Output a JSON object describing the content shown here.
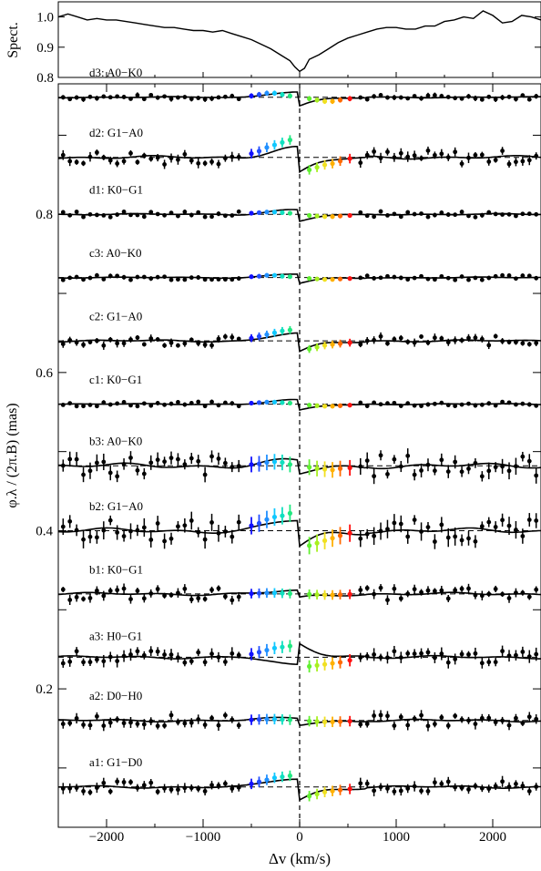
{
  "chart_data": [
    {
      "type": "line",
      "ylabel": "Spect.",
      "ylim": [
        0.8,
        1.05
      ],
      "yticks": [
        "0.8",
        "0.9",
        "1.0"
      ],
      "xlim": [
        -2500,
        2500
      ],
      "grid": false,
      "series": [
        {
          "x": [
            -2500,
            -2400,
            -2300,
            -2200,
            -2100,
            -2000,
            -1900,
            -1800,
            -1700,
            -1600,
            -1500,
            -1400,
            -1300,
            -1200,
            -1100,
            -1000,
            -900,
            -800,
            -700,
            -600,
            -500,
            -400,
            -300,
            -200,
            -100,
            -50,
            0,
            50,
            100,
            200,
            300,
            400,
            500,
            600,
            700,
            800,
            900,
            1000,
            1100,
            1200,
            1300,
            1400,
            1500,
            1600,
            1700,
            1800,
            1900,
            2000,
            2100,
            2200,
            2300,
            2400,
            2500
          ],
          "values": [
            1.0,
            1.01,
            1.0,
            0.99,
            0.995,
            0.99,
            0.99,
            0.985,
            0.98,
            0.975,
            0.97,
            0.965,
            0.965,
            0.96,
            0.955,
            0.955,
            0.95,
            0.955,
            0.945,
            0.935,
            0.925,
            0.91,
            0.895,
            0.875,
            0.855,
            0.835,
            0.82,
            0.83,
            0.86,
            0.875,
            0.895,
            0.915,
            0.93,
            0.94,
            0.95,
            0.96,
            0.965,
            0.965,
            0.96,
            0.96,
            0.97,
            0.97,
            0.985,
            0.99,
            1.0,
            0.995,
            1.02,
            1.005,
            0.98,
            0.985,
            1.005,
            1.0,
            0.99
          ]
        }
      ]
    },
    {
      "type": "scatter",
      "xlabel": "Δv  (km/s)",
      "ylabel": "φ.λ / (2π.B)    (mas)",
      "xlim": [
        -2500,
        2500
      ],
      "ylim": [
        0.025,
        0.965
      ],
      "xticks": [
        "−2000",
        "−1000",
        "0",
        "1000",
        "2000"
      ],
      "yticks": [
        "0.2",
        "0.4",
        "0.6",
        "0.8"
      ],
      "grid": false,
      "vertical_line_at": 0,
      "series": [
        {
          "name": "d3:  A0−K0",
          "baseline": 0.948,
          "amp": 0.012,
          "noise": 0.003,
          "err": 0.006,
          "points": [
            2,
            4,
            6,
            6,
            4,
            2,
            -2,
            -4,
            -6,
            -6,
            -4,
            -2
          ]
        },
        {
          "name": "d2:  G1−A0",
          "baseline": 0.872,
          "amp": 0.022,
          "noise": 0.009,
          "err": 0.011,
          "points": [
            3,
            5,
            8,
            10,
            12,
            14,
            -10,
            -8,
            -6,
            -5,
            -3,
            -1
          ]
        },
        {
          "name": "d1:  K0−G1",
          "baseline": 0.8,
          "amp": 0.01,
          "noise": 0.004,
          "err": 0.005,
          "points": [
            2,
            3,
            4,
            4,
            3,
            2,
            -2,
            -3,
            -4,
            -4,
            -3,
            -2
          ]
        },
        {
          "name": "c3:  A0−K0",
          "baseline": 0.72,
          "amp": 0.008,
          "noise": 0.003,
          "err": 0.005,
          "points": [
            2,
            3,
            5,
            5,
            3,
            2,
            -2,
            -3,
            -4,
            -4,
            -3,
            -2
          ]
        },
        {
          "name": "c2:  G1−A0",
          "baseline": 0.64,
          "amp": 0.016,
          "noise": 0.006,
          "err": 0.009,
          "points": [
            3,
            5,
            7,
            9,
            11,
            12,
            -9,
            -7,
            -5,
            -4,
            -3,
            -2
          ]
        },
        {
          "name": "c1:  K0−G1",
          "baseline": 0.56,
          "amp": 0.009,
          "noise": 0.003,
          "err": 0.005,
          "points": [
            2,
            3,
            4,
            4,
            3,
            2,
            -2,
            -3,
            -4,
            -4,
            -3,
            -2
          ]
        },
        {
          "name": "b3:  A0−K0",
          "baseline": 0.482,
          "amp": 0.012,
          "noise": 0.014,
          "err": 0.018,
          "points": [
            2,
            3,
            5,
            6,
            5,
            2,
            -2,
            -4,
            -5,
            -6,
            -4,
            -3
          ]
        },
        {
          "name": "b2:  G1−A0",
          "baseline": 0.4,
          "amp": 0.022,
          "noise": 0.014,
          "err": 0.02,
          "points": [
            4,
            6,
            9,
            11,
            12,
            14,
            -12,
            -10,
            -8,
            -6,
            -4,
            -2
          ]
        },
        {
          "name": "b1:  K0−G1",
          "baseline": 0.32,
          "amp": 0.006,
          "noise": 0.008,
          "err": 0.011,
          "points": [
            1,
            2,
            3,
            3,
            2,
            1,
            -1,
            -2,
            -3,
            -3,
            -2,
            -1
          ]
        },
        {
          "name": "a3:  H0−G1",
          "baseline": 0.24,
          "amp": -0.018,
          "noise": 0.008,
          "err": 0.014,
          "points": [
            -3,
            -5,
            -7,
            -9,
            -10,
            -11,
            9,
            8,
            7,
            6,
            5,
            3
          ]
        },
        {
          "name": "a2:  D0−H0",
          "baseline": 0.16,
          "amp": 0.006,
          "noise": 0.007,
          "err": 0.012,
          "points": [
            2,
            3,
            4,
            4,
            3,
            2,
            -2,
            -3,
            -4,
            -4,
            -3,
            -2
          ]
        },
        {
          "name": "a1:  G1−D0",
          "baseline": 0.076,
          "amp": 0.018,
          "noise": 0.007,
          "err": 0.012,
          "points": [
            3,
            5,
            7,
            9,
            10,
            11,
            -9,
            -7,
            -5,
            -4,
            -3,
            -2
          ]
        }
      ],
      "colored_points_x": [
        -500,
        -420,
        -340,
        -260,
        -180,
        -100,
        100,
        180,
        260,
        340,
        420,
        520
      ],
      "colored_points_colors": [
        "#1010ff",
        "#1f4dff",
        "#2090ff",
        "#10c8ff",
        "#10e0c0",
        "#20e880",
        "#60f030",
        "#a8f020",
        "#f0e020",
        "#ffb000",
        "#ff6a00",
        "#ff1010"
      ]
    }
  ]
}
